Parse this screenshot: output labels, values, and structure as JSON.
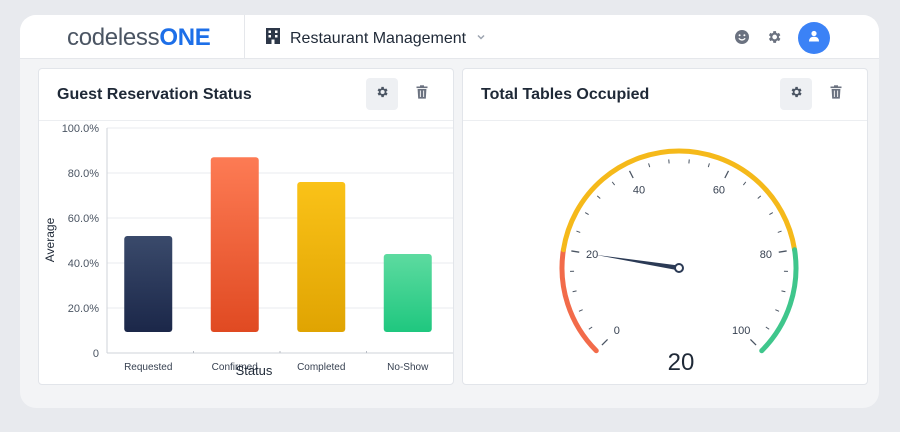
{
  "header": {
    "logo_part1": "codeless",
    "logo_part2": "ONE",
    "app_name": "Restaurant Management",
    "icons": [
      "building-icon",
      "chevron-down-icon",
      "smiley-icon",
      "gear-icon",
      "user-icon"
    ]
  },
  "panels": {
    "left": {
      "title": "Guest Reservation Status"
    },
    "right": {
      "title": "Total Tables Occupied"
    }
  },
  "chart_data": [
    {
      "type": "bar",
      "title": "Guest Reservation Status",
      "xlabel": "Status",
      "ylabel": "Average",
      "categories": [
        "Requested",
        "Confirmed",
        "Completed",
        "No-Show"
      ],
      "values": [
        52,
        87,
        76,
        44
      ],
      "ylim": [
        0,
        100
      ],
      "yticks": [
        0,
        20,
        40,
        60,
        80,
        100
      ],
      "ytick_labels": [
        "0",
        "20.0%",
        "40.0%",
        "60.0%",
        "80.0%",
        "100.0%"
      ],
      "grid": true,
      "colors": [
        [
          "#3a4a6b",
          "#1b2749"
        ],
        [
          "#fd7b54",
          "#e04a22"
        ],
        [
          "#fac218",
          "#e0a402"
        ],
        [
          "#5ddba0",
          "#1fc77f"
        ]
      ]
    },
    {
      "type": "gauge",
      "title": "Total Tables Occupied",
      "value": 20,
      "min": 0,
      "max": 100,
      "ticks": [
        0,
        20,
        40,
        60,
        80,
        100
      ],
      "bands": [
        {
          "from": 0,
          "to": 20,
          "color": "#f26b4a"
        },
        {
          "from": 20,
          "to": 80,
          "color": "#f5b91a"
        },
        {
          "from": 80,
          "to": 100,
          "color": "#3fc68c"
        }
      ],
      "needle_color": "#2b3a55"
    }
  ]
}
